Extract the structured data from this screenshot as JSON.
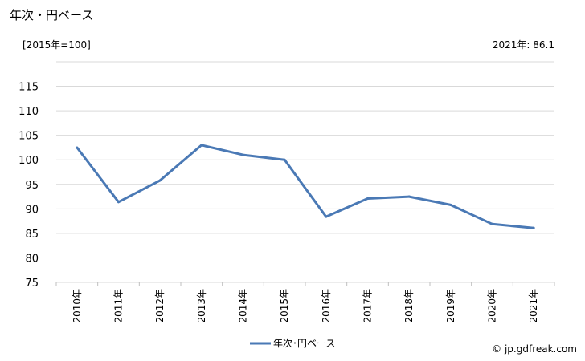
{
  "header": {
    "title": "年次・円ベース",
    "unit": "[2015年=100]",
    "latest": "2021年: 86.1"
  },
  "footer": {
    "credit": "© jp.gdfreak.com"
  },
  "colors": {
    "line": "#4a79b5",
    "grid": "#d9d9d9",
    "axis": "#bfbfbf"
  },
  "chart_data": {
    "type": "line",
    "title": "",
    "xlabel": "",
    "ylabel": "",
    "categories": [
      "2010年",
      "2011年",
      "2012年",
      "2013年",
      "2014年",
      "2015年",
      "2016年",
      "2017年",
      "2018年",
      "2019年",
      "2020年",
      "2021年"
    ],
    "series": [
      {
        "name": "年次･円ベース",
        "values": [
          102.5,
          91.4,
          95.8,
          103.0,
          101.0,
          100.0,
          88.4,
          92.1,
          92.5,
          90.8,
          86.9,
          86.1
        ]
      }
    ],
    "ylim": [
      75,
      120
    ],
    "yticks": [
      75,
      80,
      85,
      90,
      95,
      100,
      105,
      110,
      115
    ],
    "grid": true,
    "legend": "bottom-center"
  }
}
